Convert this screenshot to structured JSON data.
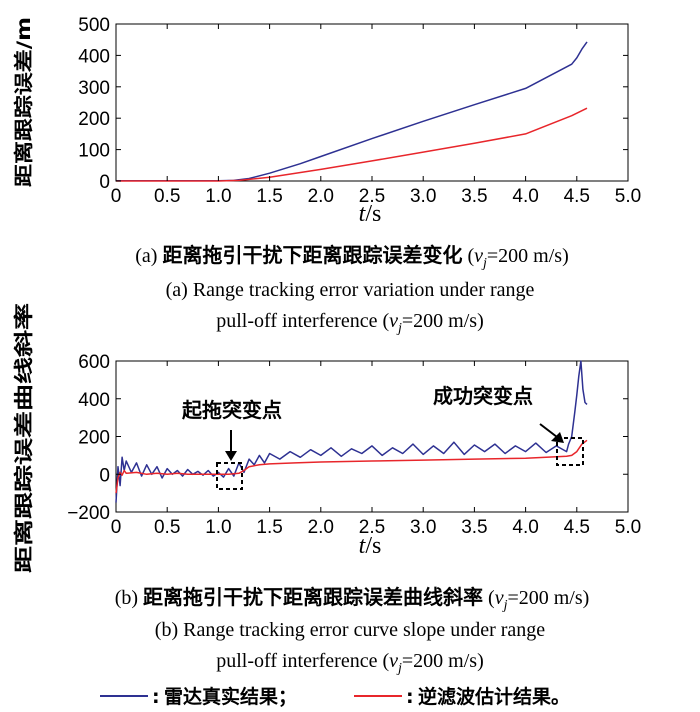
{
  "chart_data": [
    {
      "type": "line",
      "ylabel": "距离跟踪误差/m",
      "xlabel_italic": "t",
      "xlabel_unit": "/s",
      "xlim": [
        0,
        5.0
      ],
      "ylim": [
        0,
        500
      ],
      "xticks": [
        "0",
        "0.5",
        "1.0",
        "1.5",
        "2.0",
        "2.5",
        "3.0",
        "3.5",
        "4.0",
        "4.5",
        "5.0"
      ],
      "yticks": [
        "0",
        "100",
        "200",
        "300",
        "400",
        "500"
      ],
      "series": [
        {
          "color": "#2e3192",
          "x": [
            0,
            0.5,
            1.0,
            1.15,
            1.3,
            1.5,
            1.8,
            2.0,
            2.5,
            3.0,
            3.5,
            4.0,
            4.45,
            4.5,
            4.55,
            4.6
          ],
          "y": [
            1,
            1,
            1,
            2,
            8,
            25,
            55,
            78,
            135,
            190,
            243,
            295,
            372,
            392,
            420,
            443
          ]
        },
        {
          "color": "#e8262b",
          "x": [
            0,
            0.5,
            1.0,
            1.2,
            1.5,
            2.0,
            2.5,
            3.0,
            3.5,
            4.0,
            4.45,
            4.5,
            4.55,
            4.6
          ],
          "y": [
            0,
            0,
            0,
            2,
            12,
            37,
            64,
            92,
            120,
            150,
            208,
            216,
            224,
            232
          ]
        }
      ],
      "caption_prefix": "(a) ",
      "caption_zh": "距离拖引干扰下距离跟踪误差变化",
      "caption_param_open": " (",
      "caption_param_v": "v",
      "caption_param_sub": "j",
      "caption_param_close": "=200 m/s)",
      "caption_en_line1": "(a) Range tracking error variation under range",
      "caption_en_line2a": "pull-off interference (",
      "caption_en_v": "v",
      "caption_en_sub": "j",
      "caption_en_line2b": "=200 m/s)"
    },
    {
      "type": "line",
      "ylabel": "距离跟踪误差曲线斜率",
      "xlabel_italic": "t",
      "xlabel_unit": "/s",
      "xlim": [
        0,
        5.0
      ],
      "ylim": [
        -200,
        600
      ],
      "xticks": [
        "0",
        "0.5",
        "1.0",
        "1.5",
        "2.0",
        "2.5",
        "3.0",
        "3.5",
        "4.0",
        "4.5",
        "5.0"
      ],
      "yticks": [
        "−200",
        "0",
        "200",
        "400",
        "600"
      ],
      "series": [
        {
          "color": "#2e3192",
          "x": [
            0,
            0.02,
            0.04,
            0.06,
            0.08,
            0.1,
            0.15,
            0.2,
            0.25,
            0.3,
            0.35,
            0.4,
            0.45,
            0.5,
            0.55,
            0.6,
            0.65,
            0.7,
            0.75,
            0.8,
            0.85,
            0.9,
            0.95,
            1.0,
            1.05,
            1.1,
            1.15,
            1.2,
            1.25,
            1.3,
            1.35,
            1.4,
            1.45,
            1.5,
            1.6,
            1.7,
            1.8,
            1.9,
            2.0,
            2.1,
            2.2,
            2.3,
            2.4,
            2.5,
            2.6,
            2.7,
            2.8,
            2.9,
            3.0,
            3.1,
            3.2,
            3.3,
            3.4,
            3.5,
            3.6,
            3.7,
            3.8,
            3.9,
            4.0,
            4.1,
            4.2,
            4.3,
            4.4,
            4.42,
            4.45,
            4.48,
            4.5,
            4.52,
            4.54,
            4.56,
            4.58,
            4.6
          ],
          "y": [
            -150,
            40,
            -60,
            90,
            20,
            70,
            10,
            60,
            -10,
            50,
            0,
            40,
            -20,
            30,
            0,
            20,
            -10,
            25,
            0,
            15,
            -5,
            20,
            -10,
            10,
            -15,
            30,
            -10,
            60,
            10,
            80,
            50,
            100,
            60,
            110,
            80,
            120,
            90,
            130,
            100,
            140,
            95,
            135,
            110,
            150,
            100,
            140,
            110,
            160,
            105,
            150,
            110,
            170,
            105,
            155,
            120,
            160,
            110,
            150,
            120,
            165,
            115,
            150,
            120,
            160,
            200,
            330,
            420,
            520,
            600,
            450,
            380,
            370
          ]
        },
        {
          "color": "#e8262b",
          "x": [
            0,
            0.02,
            0.04,
            0.06,
            0.08,
            0.1,
            0.2,
            0.3,
            0.4,
            0.5,
            0.6,
            0.7,
            0.8,
            0.9,
            1.0,
            1.1,
            1.2,
            1.25,
            1.3,
            1.4,
            1.5,
            1.75,
            2.0,
            2.5,
            3.0,
            3.5,
            4.0,
            4.4,
            4.45,
            4.5,
            4.55,
            4.6
          ],
          "y": [
            -100,
            -20,
            10,
            -5,
            20,
            5,
            10,
            0,
            5,
            0,
            5,
            0,
            0,
            0,
            0,
            0,
            5,
            20,
            40,
            50,
            55,
            60,
            65,
            70,
            75,
            80,
            85,
            95,
            100,
            120,
            160,
            180
          ]
        }
      ],
      "annotations": [
        {
          "label": "起拖突变点",
          "x": 1.15,
          "y": 0
        },
        {
          "label": "成功突变点",
          "x": 4.45,
          "y": 150
        }
      ],
      "caption_prefix": "(b) ",
      "caption_zh": "距离拖引干扰下距离跟踪误差曲线斜率",
      "caption_param_open": " (",
      "caption_param_v": "v",
      "caption_param_sub": "j",
      "caption_param_close": "=200 m/s)",
      "caption_en_line1": "(b) Range tracking error curve slope under range",
      "caption_en_line2a": "pull-off interference (",
      "caption_en_v": "v",
      "caption_en_sub": "j",
      "caption_en_line2b": "=200 m/s)"
    }
  ],
  "legend": [
    {
      "label": "雷达真实结果；",
      "color": "#2e3192"
    },
    {
      "label": "逆滤波估计结果。",
      "color": "#e8262b"
    }
  ],
  "legend_separator": ":"
}
